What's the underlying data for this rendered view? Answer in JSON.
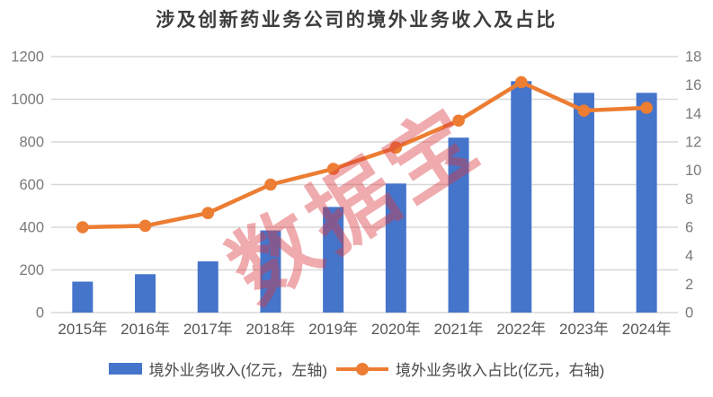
{
  "title": "涉及创新药业务公司的境外业务收入及占比",
  "watermark": "数据宝",
  "colors": {
    "bar": "#4574CB",
    "line": "#EC7D32",
    "grid": "#D8D8D8",
    "title_text": "#3D3D3D",
    "y_axis_text": "#7A7A7A",
    "x_axis_text": "#555555",
    "legend_text": "#4A4A4A",
    "watermark": "rgba(218,55,62,0.42)"
  },
  "chart_data": {
    "type": "bar+line combo",
    "title": "涉及创新药业务公司的境外业务收入及占比",
    "categories": [
      "2015年",
      "2016年",
      "2017年",
      "2018年",
      "2019年",
      "2020年",
      "2021年",
      "2022年",
      "2023年",
      "2024年"
    ],
    "series": [
      {
        "name": "境外业务收入(亿元，左轴)",
        "type": "bar",
        "axis": "left",
        "values": [
          145,
          180,
          240,
          385,
          495,
          605,
          820,
          1085,
          1030,
          1030
        ]
      },
      {
        "name": "境外业务收入占比(亿元，右轴)",
        "type": "line",
        "axis": "right",
        "values": [
          6.0,
          6.1,
          7.0,
          9.0,
          10.1,
          11.6,
          13.5,
          16.2,
          14.2,
          14.4
        ]
      }
    ],
    "left_axis": {
      "min": 0,
      "max": 1200,
      "step": 200
    },
    "right_axis": {
      "min": 0,
      "max": 18,
      "step": 2
    },
    "grid": true,
    "legend_position": "bottom"
  },
  "legend": {
    "items": [
      {
        "label": "境外业务收入(亿元，左轴)"
      },
      {
        "label": "境外业务收入占比(亿元，右轴)"
      }
    ]
  }
}
